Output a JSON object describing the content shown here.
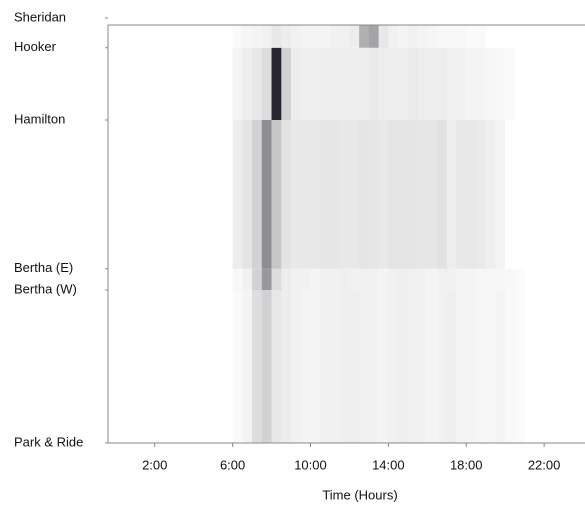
{
  "chart_data": {
    "type": "heatmap",
    "x_label": "Time (Hours)",
    "xlim": [
      -0.4,
      24.1
    ],
    "xticks": [
      {
        "value": 2,
        "label": "2:00"
      },
      {
        "value": 6,
        "label": "6:00"
      },
      {
        "value": 10,
        "label": "10:00"
      },
      {
        "value": 14,
        "label": "14:00"
      },
      {
        "value": 18,
        "label": "18:00"
      },
      {
        "value": 22,
        "label": "22:00"
      }
    ],
    "ylim": [
      0,
      100
    ],
    "yticks": [
      {
        "value": 0,
        "label": "Park & Ride"
      },
      {
        "value": 36,
        "label": "Bertha (W)"
      },
      {
        "value": 41,
        "label": "Bertha (E)"
      },
      {
        "value": 76,
        "label": "Hamilton"
      },
      {
        "value": 93,
        "label": "Hooker"
      },
      {
        "value": 100,
        "label": "Sheridan"
      }
    ],
    "bins": [
      6,
      6.5,
      7,
      7.5,
      8,
      8.5,
      9,
      9.5,
      10,
      10.5,
      11,
      11.5,
      12,
      12.5,
      13,
      13.5,
      14,
      14.5,
      15,
      15.5,
      16,
      16.5,
      17,
      17.5,
      18,
      18.5,
      19,
      19.5,
      20,
      20.5,
      21
    ],
    "colors": [
      "#ffffff",
      "#1c1a24"
    ],
    "rows": [
      [
        0.02,
        0.05,
        0.15,
        0.2,
        0.1,
        0.08,
        0.06,
        0.05,
        0.05,
        0.06,
        0.06,
        0.07,
        0.07,
        0.06,
        0.06,
        0.05,
        0.06,
        0.07,
        0.06,
        0.06,
        0.05,
        0.06,
        0.07,
        0.05,
        0.05,
        0.04,
        0.04,
        0.05,
        0.03,
        0.02
      ],
      [
        0.03,
        0.06,
        0.2,
        0.45,
        0.15,
        0.08,
        0.06,
        0.06,
        0.05,
        0.06,
        0.06,
        0.07,
        0.06,
        0.06,
        0.06,
        0.05,
        0.06,
        0.07,
        0.06,
        0.06,
        0.05,
        0.06,
        0.06,
        0.05,
        0.05,
        0.04,
        0.04,
        0.04,
        0.03,
        0.02
      ],
      [
        0.08,
        0.12,
        0.2,
        0.5,
        0.25,
        0.12,
        0.1,
        0.1,
        0.1,
        0.11,
        0.11,
        0.1,
        0.1,
        0.12,
        0.11,
        0.1,
        0.12,
        0.12,
        0.12,
        0.11,
        0.11,
        0.13,
        0.08,
        0.1,
        0.1,
        0.09,
        0.07,
        0.05,
        0,
        0
      ],
      [
        0.05,
        0.08,
        0.1,
        0.15,
        0.95,
        0.2,
        0.08,
        0.07,
        0.07,
        0.08,
        0.08,
        0.08,
        0.08,
        0.08,
        0.09,
        0.08,
        0.08,
        0.08,
        0.09,
        0.08,
        0.08,
        0.08,
        0.06,
        0.06,
        0.05,
        0.05,
        0.04,
        0.03,
        0.02,
        0
      ],
      [
        0.02,
        0.04,
        0.05,
        0.06,
        0.1,
        0.08,
        0.06,
        0.05,
        0.05,
        0.05,
        0.06,
        0.06,
        0.08,
        0.35,
        0.4,
        0.1,
        0.06,
        0.05,
        0.06,
        0.05,
        0.04,
        0.03,
        0.03,
        0.03,
        0.02,
        0.02,
        0,
        0,
        0,
        0
      ]
    ]
  }
}
